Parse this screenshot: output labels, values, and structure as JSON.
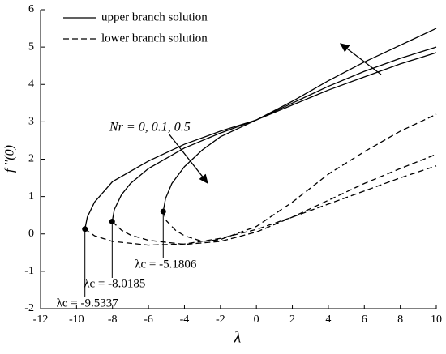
{
  "chart_data": {
    "type": "line",
    "xlabel": "λ",
    "ylabel": "f ''(0)",
    "xlim": [
      -12,
      10
    ],
    "ylim": [
      -2,
      6
    ],
    "xticks": [
      -12,
      -10,
      -8,
      -6,
      -4,
      -2,
      0,
      2,
      4,
      6,
      8,
      10
    ],
    "yticks": [
      -2,
      -1,
      0,
      1,
      2,
      3,
      4,
      5,
      6
    ],
    "series": [
      {
        "name": "upper branch solution",
        "color": "#000",
        "dashed": false,
        "curves": [
          {
            "x": [
              -9.5337,
              -9.4,
              -9,
              -8,
              -6,
              -4,
              -2,
              0,
              2,
              4,
              6,
              8,
              10
            ],
            "values": [
              0.13,
              0.45,
              0.85,
              1.4,
              1.95,
              2.4,
              2.75,
              3.05,
              3.45,
              3.85,
              4.2,
              4.55,
              4.85
            ]
          },
          {
            "x": [
              -8.0185,
              -7.9,
              -7.5,
              -7,
              -6,
              -4,
              -2,
              0,
              2,
              4,
              6,
              8,
              10
            ],
            "values": [
              0.33,
              0.65,
              1.05,
              1.35,
              1.75,
              2.3,
              2.7,
              3.05,
              3.5,
              3.95,
              4.35,
              4.7,
              5.0
            ]
          },
          {
            "x": [
              -5.1806,
              -5.05,
              -4.7,
              -4,
              -3,
              -2,
              0,
              2,
              4,
              6,
              8,
              10
            ],
            "values": [
              0.6,
              0.95,
              1.35,
              1.8,
              2.25,
              2.6,
              3.05,
              3.55,
              4.1,
              4.6,
              5.05,
              5.5
            ]
          }
        ]
      },
      {
        "name": "lower branch solution",
        "color": "#000",
        "dashed": true,
        "curves": [
          {
            "x": [
              -9.5337,
              -9,
              -8,
              -6,
              -4,
              -2,
              0,
              2,
              4,
              6,
              8,
              10
            ],
            "values": [
              0.13,
              -0.05,
              -0.2,
              -0.3,
              -0.27,
              -0.12,
              0.12,
              0.45,
              0.8,
              1.15,
              1.5,
              1.82
            ]
          },
          {
            "x": [
              -8.0185,
              -7.5,
              -7,
              -6,
              -4,
              -2,
              0,
              2,
              4,
              6,
              8,
              10
            ],
            "values": [
              0.33,
              0.1,
              -0.03,
              -0.17,
              -0.28,
              -0.2,
              0.05,
              0.45,
              0.9,
              1.35,
              1.75,
              2.13
            ]
          },
          {
            "x": [
              -5.1806,
              -5,
              -4.5,
              -4,
              -3,
              -2,
              0,
              2,
              4,
              6,
              8,
              10
            ],
            "values": [
              0.6,
              0.35,
              0.1,
              -0.05,
              -0.2,
              -0.15,
              0.2,
              0.85,
              1.6,
              2.2,
              2.75,
              3.2
            ]
          }
        ]
      }
    ],
    "critical_points": [
      {
        "x": -9.5337,
        "y": 0.13,
        "label": "λc = -9.5337"
      },
      {
        "x": -8.0185,
        "y": 0.33,
        "label": "λc = -8.0185"
      },
      {
        "x": -5.1806,
        "y": 0.6,
        "label": "λc = -5.1806"
      }
    ],
    "annotation": "Nr = 0, 0.1, 0.5"
  }
}
